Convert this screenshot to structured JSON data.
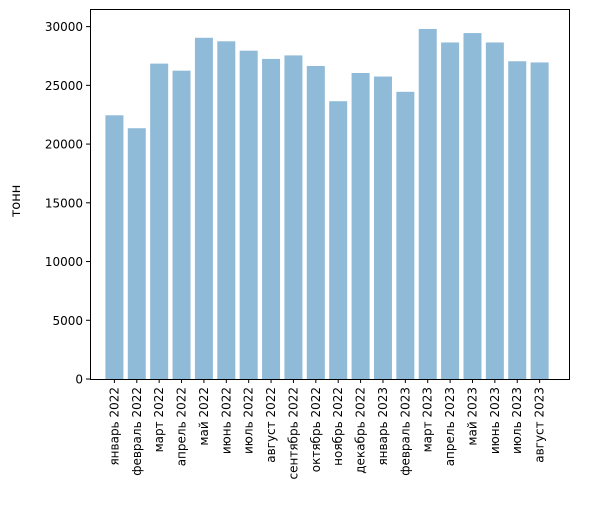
{
  "chart_data": {
    "type": "bar",
    "title": "",
    "xlabel": "",
    "ylabel": "тонн",
    "ylim": [
      0,
      31500
    ],
    "yticks": [
      0,
      5000,
      10000,
      15000,
      20000,
      25000,
      30000
    ],
    "ytick_labels": [
      "0",
      "5000",
      "10000",
      "15000",
      "20000",
      "25000",
      "30000"
    ],
    "grid": false,
    "bar_color": "#8fbad8",
    "categories": [
      "январь 2022",
      "февраль 2022",
      "март 2022",
      "апрель 2022",
      "май 2022",
      "июнь 2022",
      "июль 2022",
      "август 2022",
      "сентябрь 2022",
      "октябрь 2022",
      "ноябрь 2022",
      "декабрь 2022",
      "январь 2023",
      "февраль 2023",
      "март 2023",
      "апрель 2023",
      "май 2023",
      "июнь 2023",
      "июль 2023",
      "август 2023"
    ],
    "values": [
      22450,
      21350,
      26850,
      26250,
      29050,
      28750,
      27950,
      27250,
      27550,
      26650,
      23650,
      26050,
      25750,
      24450,
      29800,
      28650,
      29450,
      28650,
      27050,
      26950
    ]
  }
}
